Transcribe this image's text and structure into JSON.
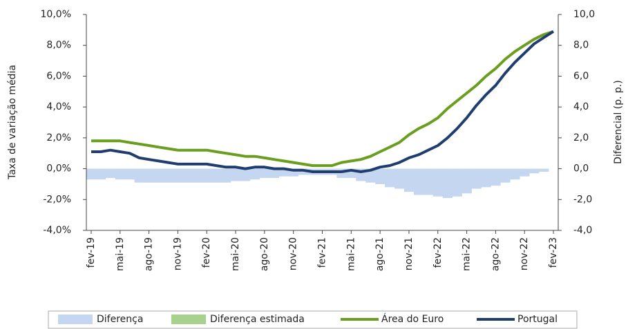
{
  "chart_data": {
    "type": "combo",
    "y_label": "Taxa de variação média",
    "y2_label": "Diferencial (p. p.)",
    "categories": [
      "fev-19",
      null,
      null,
      "mai-19",
      null,
      null,
      "ago-19",
      null,
      null,
      "nov-19",
      null,
      null,
      "fev-20",
      null,
      null,
      "mai-20",
      null,
      null,
      "ago-20",
      null,
      null,
      "nov-20",
      null,
      null,
      "fev-21",
      null,
      null,
      "mai-21",
      null,
      null,
      "ago-21",
      null,
      null,
      "nov-21",
      null,
      null,
      "fev-22",
      null,
      null,
      "mai-22",
      null,
      null,
      "ago-22",
      null,
      null,
      "nov-22",
      null,
      null,
      "fev-23"
    ],
    "ylim": [
      -4,
      10
    ],
    "yticks": [
      {
        "value": -4,
        "label": "-4,0%"
      },
      {
        "value": -2,
        "label": "-2,0%"
      },
      {
        "value": 0,
        "label": "0,0%"
      },
      {
        "value": 2,
        "label": "2,0%"
      },
      {
        "value": 4,
        "label": "4,0%"
      },
      {
        "value": 6,
        "label": "6,0%"
      },
      {
        "value": 8,
        "label": "8,0%"
      },
      {
        "value": 10,
        "label": "10,0%"
      }
    ],
    "y2lim": [
      -4,
      10
    ],
    "y2ticks": [
      {
        "value": -4,
        "label": "-4,0"
      },
      {
        "value": -2,
        "label": "-2,0"
      },
      {
        "value": 0,
        "label": "0,0"
      },
      {
        "value": 2,
        "label": "2,0"
      },
      {
        "value": 4,
        "label": "4,0"
      },
      {
        "value": 6,
        "label": "6,0"
      },
      {
        "value": 8,
        "label": "8,0"
      },
      {
        "value": 10,
        "label": "10,0"
      }
    ],
    "series": [
      {
        "name": "Diferença",
        "kind": "bar",
        "axis": "y2",
        "color": "#c5d7f0",
        "values": [
          -0.7,
          -0.7,
          -0.6,
          -0.7,
          -0.7,
          -0.9,
          -0.9,
          -0.9,
          -0.9,
          -0.9,
          -0.9,
          -0.9,
          -0.9,
          -0.9,
          -0.9,
          -0.8,
          -0.8,
          -0.7,
          -0.6,
          -0.6,
          -0.5,
          -0.5,
          -0.4,
          -0.4,
          -0.4,
          -0.4,
          -0.6,
          -0.6,
          -0.8,
          -0.9,
          -1.0,
          -1.2,
          -1.3,
          -1.5,
          -1.7,
          -1.7,
          -1.8,
          -1.9,
          -1.8,
          -1.6,
          -1.3,
          -1.2,
          -1.1,
          -0.9,
          -0.7,
          -0.5,
          -0.3,
          -0.2,
          0.0
        ]
      },
      {
        "name": "Diferença estimada",
        "kind": "bar",
        "axis": "y2",
        "color": "#a9d18e",
        "values": [
          null,
          null,
          null,
          null,
          null,
          null,
          null,
          null,
          null,
          null,
          null,
          null,
          null,
          null,
          null,
          null,
          null,
          null,
          null,
          null,
          null,
          null,
          null,
          null,
          null,
          null,
          null,
          null,
          null,
          null,
          null,
          null,
          null,
          null,
          null,
          null,
          null,
          null,
          null,
          null,
          null,
          null,
          null,
          null,
          null,
          null,
          null,
          null,
          null
        ]
      },
      {
        "name": "Área do Euro",
        "kind": "line",
        "color": "#6a9e1f",
        "values": [
          1.8,
          1.8,
          1.8,
          1.8,
          1.7,
          1.6,
          1.5,
          1.4,
          1.3,
          1.2,
          1.2,
          1.2,
          1.2,
          1.1,
          1.0,
          0.9,
          0.8,
          0.8,
          0.7,
          0.6,
          0.5,
          0.4,
          0.3,
          0.2,
          0.2,
          0.2,
          0.4,
          0.5,
          0.6,
          0.8,
          1.1,
          1.4,
          1.7,
          2.2,
          2.6,
          2.9,
          3.3,
          3.9,
          4.4,
          4.9,
          5.4,
          6.0,
          6.5,
          7.1,
          7.6,
          8.0,
          8.4,
          8.7,
          8.9
        ]
      },
      {
        "name": "Portugal",
        "kind": "line",
        "color": "#1f3e6e",
        "values": [
          1.1,
          1.1,
          1.2,
          1.1,
          1.0,
          0.7,
          0.6,
          0.5,
          0.4,
          0.3,
          0.3,
          0.3,
          0.3,
          0.2,
          0.1,
          0.1,
          0.0,
          0.1,
          0.1,
          0.0,
          0.0,
          -0.1,
          -0.1,
          -0.2,
          -0.2,
          -0.2,
          -0.2,
          -0.1,
          -0.2,
          -0.1,
          0.1,
          0.2,
          0.4,
          0.7,
          0.9,
          1.2,
          1.5,
          2.0,
          2.6,
          3.3,
          4.1,
          4.8,
          5.4,
          6.2,
          6.9,
          7.5,
          8.1,
          8.5,
          8.9
        ]
      }
    ]
  }
}
